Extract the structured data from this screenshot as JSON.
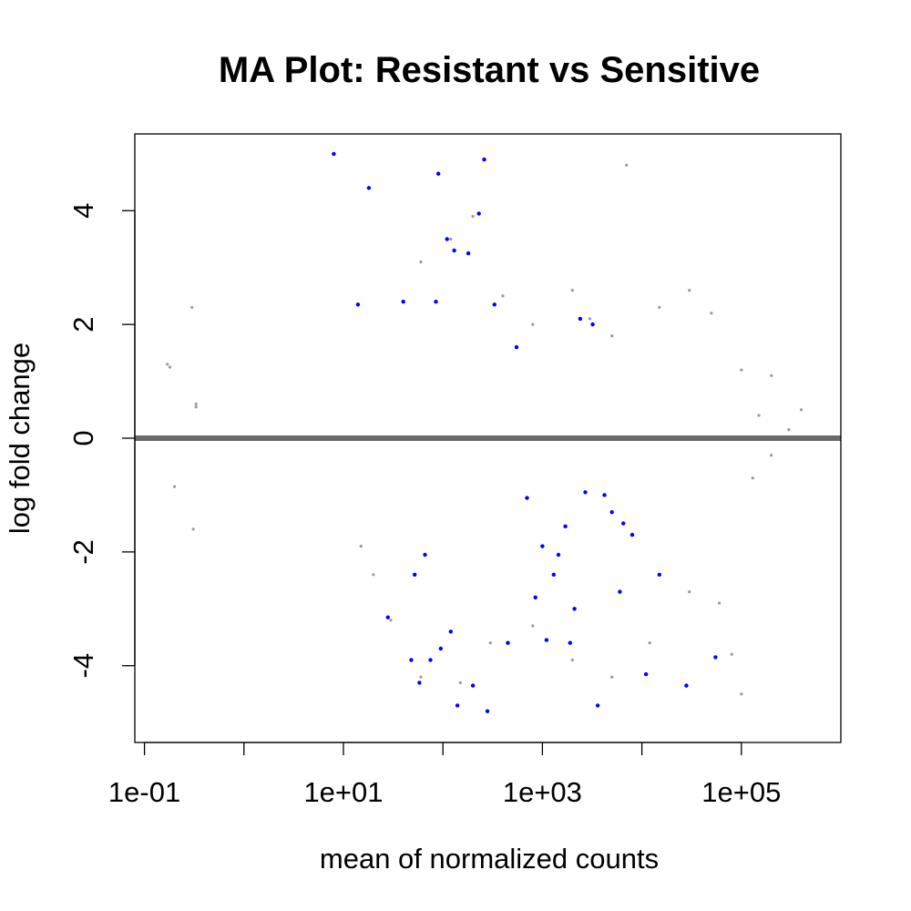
{
  "chart_data": {
    "type": "scatter",
    "title": "MA Plot: Resistant vs Sensitive",
    "xlabel": "mean of normalized counts",
    "ylabel": "log fold change",
    "x_scale": "log10",
    "xlim": [
      0.08,
      1000000
    ],
    "ylim": [
      -5.35,
      5.35
    ],
    "x_ticks": [
      {
        "value": 0.1,
        "label": "1e-01"
      },
      {
        "value": 1,
        "label": ""
      },
      {
        "value": 10,
        "label": "1e+01"
      },
      {
        "value": 100,
        "label": ""
      },
      {
        "value": 1000,
        "label": "1e+03"
      },
      {
        "value": 10000,
        "label": ""
      },
      {
        "value": 100000,
        "label": "1e+05"
      }
    ],
    "y_ticks": [
      {
        "value": -4,
        "label": "-4"
      },
      {
        "value": -2,
        "label": "-2"
      },
      {
        "value": 0,
        "label": "0"
      },
      {
        "value": 2,
        "label": "2"
      },
      {
        "value": 4,
        "label": "4"
      }
    ],
    "reference_line": {
      "y": 0,
      "color": "#6b6b6b"
    },
    "grid": false,
    "legend": "none",
    "clip_limits": [
      -5,
      5
    ],
    "series": [
      {
        "color": "#9a9a9a",
        "marker": "dot",
        "points": [
          [
            0.17,
            1.3
          ],
          [
            0.18,
            1.25
          ],
          [
            0.2,
            -0.85
          ],
          [
            0.3,
            2.3
          ],
          [
            0.31,
            -1.6
          ],
          [
            0.33,
            0.6
          ],
          [
            0.33,
            0.55
          ],
          [
            40,
            2.4
          ],
          [
            60,
            3.1
          ],
          [
            120,
            3.5
          ],
          [
            200,
            3.9
          ],
          [
            400,
            2.5
          ],
          [
            800,
            2.0
          ],
          [
            2000,
            2.6
          ],
          [
            3000,
            2.1
          ],
          [
            5000,
            1.8
          ],
          [
            7000,
            4.8
          ],
          [
            15000,
            2.3
          ],
          [
            30000,
            2.6
          ],
          [
            50000,
            2.2
          ],
          [
            100000,
            1.2
          ],
          [
            150000,
            0.4
          ],
          [
            200000,
            1.1
          ],
          [
            300000,
            0.15
          ],
          [
            400000,
            0.5
          ],
          [
            600000,
            0.0
          ],
          [
            200000,
            -0.3
          ],
          [
            130000,
            -0.7
          ],
          [
            60000,
            -2.9
          ],
          [
            80000,
            -3.8
          ],
          [
            100000,
            -4.5
          ],
          [
            30000,
            -2.7
          ],
          [
            12000,
            -3.6
          ],
          [
            5000,
            -4.2
          ],
          [
            2000,
            -3.9
          ],
          [
            800,
            -3.3
          ],
          [
            300,
            -3.6
          ],
          [
            150,
            -4.3
          ],
          [
            60,
            -4.2
          ],
          [
            30,
            -3.2
          ],
          [
            20,
            -2.4
          ],
          [
            15,
            -1.9
          ]
        ]
      },
      {
        "color": "#0000ff",
        "marker": "dot",
        "points": [
          [
            8,
            5.0
          ],
          [
            14,
            2.35
          ],
          [
            18,
            4.4
          ],
          [
            28,
            -3.15
          ],
          [
            40,
            2.4
          ],
          [
            48,
            -3.9
          ],
          [
            52,
            -2.4
          ],
          [
            58,
            -4.3
          ],
          [
            66,
            -2.05
          ],
          [
            75,
            -3.9
          ],
          [
            85,
            2.4
          ],
          [
            90,
            4.65
          ],
          [
            95,
            -3.7
          ],
          [
            110,
            3.5
          ],
          [
            120,
            -3.4
          ],
          [
            130,
            3.3
          ],
          [
            140,
            -4.7
          ],
          [
            180,
            3.25
          ],
          [
            200,
            -4.35
          ],
          [
            230,
            3.95
          ],
          [
            260,
            4.9
          ],
          [
            280,
            -4.8
          ],
          [
            330,
            2.35
          ],
          [
            450,
            -3.6
          ],
          [
            550,
            1.6
          ],
          [
            700,
            -1.05
          ],
          [
            850,
            -2.8
          ],
          [
            1000,
            -1.9
          ],
          [
            1100,
            -3.55
          ],
          [
            1300,
            -2.4
          ],
          [
            1450,
            -2.05
          ],
          [
            1700,
            -1.55
          ],
          [
            1900,
            -3.6
          ],
          [
            2100,
            -3.0
          ],
          [
            2400,
            2.1
          ],
          [
            2700,
            -0.95
          ],
          [
            3200,
            2.0
          ],
          [
            3600,
            -4.7
          ],
          [
            4200,
            -1.0
          ],
          [
            5000,
            -1.3
          ],
          [
            6000,
            -2.7
          ],
          [
            6500,
            -1.5
          ],
          [
            8000,
            -1.7
          ],
          [
            11000,
            -4.15
          ],
          [
            15000,
            -2.4
          ],
          [
            28000,
            -4.35
          ],
          [
            55000,
            -3.85
          ]
        ]
      }
    ]
  }
}
